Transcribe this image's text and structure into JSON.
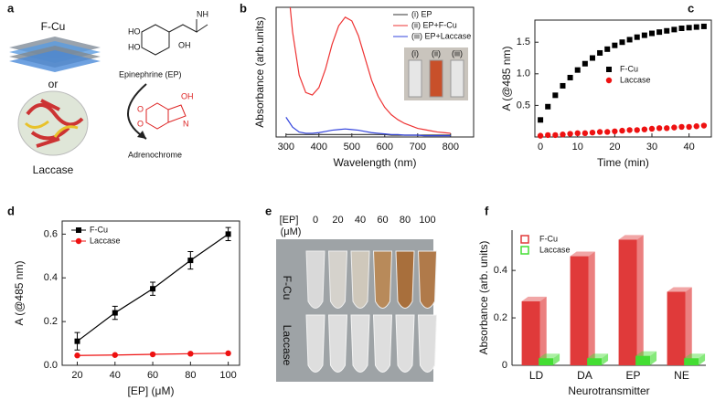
{
  "chart_data": [
    {
      "panel": "b",
      "type": "line",
      "xlabel": "Wavelength (nm)",
      "ylabel": "Absorbance (arb.units)",
      "x": [
        300,
        320,
        340,
        360,
        380,
        400,
        420,
        440,
        460,
        480,
        500,
        520,
        540,
        560,
        580,
        600,
        620,
        640,
        660,
        680,
        700,
        720,
        740,
        760,
        780,
        800
      ],
      "xlim": [
        270,
        870
      ],
      "xticks": [
        300,
        400,
        500,
        600,
        700,
        800
      ],
      "ylim": [
        0,
        1.05
      ],
      "legend": "upper right",
      "inset_labels": [
        "(i)",
        "(ii)",
        "(iii)"
      ],
      "series": [
        {
          "name": "(i) EP",
          "color": "#333333",
          "values": [
            0.02,
            0.02,
            0.02,
            0.02,
            0.02,
            0.02,
            0.02,
            0.02,
            0.02,
            0.02,
            0.02,
            0.02,
            0.02,
            0.02,
            0.02,
            0.02,
            0.015,
            0.015,
            0.015,
            0.015,
            0.015,
            0.015,
            0.015,
            0.015,
            0.015,
            0.015
          ]
        },
        {
          "name": "(ii) EP+F-Cu",
          "color": "#ee3333",
          "values": [
            1.4,
            0.85,
            0.5,
            0.36,
            0.34,
            0.4,
            0.55,
            0.75,
            0.9,
            0.97,
            0.94,
            0.82,
            0.64,
            0.46,
            0.33,
            0.24,
            0.18,
            0.14,
            0.11,
            0.09,
            0.07,
            0.06,
            0.05,
            0.04,
            0.035,
            0.03
          ]
        },
        {
          "name": "(iii) EP+Laccase",
          "color": "#3344dd",
          "values": [
            0.16,
            0.08,
            0.04,
            0.03,
            0.03,
            0.035,
            0.045,
            0.055,
            0.06,
            0.065,
            0.06,
            0.055,
            0.045,
            0.035,
            0.03,
            0.025,
            0.02,
            0.02,
            0.015,
            0.015,
            0.015,
            0.01,
            0.01,
            0.01,
            0.01,
            0.01
          ]
        }
      ]
    },
    {
      "panel": "c",
      "type": "scatter",
      "xlabel": "Time (min)",
      "ylabel": "A (@485 nm)",
      "x": [
        0,
        2,
        4,
        6,
        8,
        10,
        12,
        14,
        16,
        18,
        20,
        22,
        24,
        26,
        28,
        30,
        32,
        34,
        36,
        38,
        40,
        42,
        44
      ],
      "xlim": [
        -1.5,
        46
      ],
      "xticks": [
        0,
        10,
        20,
        30,
        40
      ],
      "ylim": [
        0,
        1.85
      ],
      "yticks": [
        0.5,
        {
          "value": 1,
          "label": "1.0"
        },
        1.5
      ],
      "legend": "center right",
      "series": [
        {
          "name": "F-Cu",
          "color": "#000000",
          "marker": "square",
          "values": [
            0.27,
            0.48,
            0.66,
            0.81,
            0.94,
            1.06,
            1.16,
            1.25,
            1.33,
            1.39,
            1.45,
            1.5,
            1.54,
            1.58,
            1.61,
            1.64,
            1.66,
            1.68,
            1.7,
            1.72,
            1.73,
            1.74,
            1.75
          ]
        },
        {
          "name": "Laccase",
          "color": "#ee1111",
          "marker": "circle",
          "values": [
            0.02,
            0.03,
            0.03,
            0.04,
            0.05,
            0.06,
            0.06,
            0.07,
            0.08,
            0.08,
            0.09,
            0.1,
            0.11,
            0.11,
            0.12,
            0.13,
            0.14,
            0.14,
            0.15,
            0.16,
            0.16,
            0.17,
            0.18
          ]
        }
      ]
    },
    {
      "panel": "d",
      "type": "line",
      "xlabel": "[EP] (μM)",
      "ylabel": "A (@485 nm)",
      "x": [
        20,
        40,
        60,
        80,
        100
      ],
      "xlim": [
        12,
        106
      ],
      "xticks": [
        20,
        40,
        60,
        80,
        100
      ],
      "ylim": [
        0,
        0.66
      ],
      "yticks": [
        {
          "value": 0,
          "label": "0.0"
        },
        0.2,
        0.4,
        0.6
      ],
      "legend": "upper left",
      "series": [
        {
          "name": "F-Cu",
          "color": "#000000",
          "marker": "square",
          "values": [
            0.11,
            0.24,
            0.35,
            0.48,
            0.6
          ],
          "errors": [
            0.04,
            0.03,
            0.03,
            0.04,
            0.03
          ]
        },
        {
          "name": "Laccase",
          "color": "#ee1111",
          "marker": "circle",
          "values": [
            0.045,
            0.047,
            0.05,
            0.053,
            0.055
          ]
        }
      ]
    },
    {
      "panel": "f",
      "type": "bar",
      "xlabel": "Neurotransmitter",
      "ylabel": "Absorbance (arb. units)",
      "categories": [
        "LD",
        "DA",
        "EP",
        "NE"
      ],
      "ylim": [
        0,
        0.57
      ],
      "yticks": [
        0,
        0.2,
        0.4
      ],
      "legend": "upper left",
      "series": [
        {
          "name": "F-Cu",
          "color": "#e03a3a",
          "values": [
            0.27,
            0.46,
            0.53,
            0.31
          ]
        },
        {
          "name": "Laccase",
          "color": "#44dd33",
          "values": [
            0.03,
            0.03,
            0.04,
            0.03
          ]
        }
      ]
    }
  ],
  "panel_a": {
    "label": "a",
    "material": "F-Cu",
    "or": "or",
    "enzyme": "Laccase",
    "substrate": "Epinephrine (EP)",
    "product": "Adrenochrome",
    "substrate_atoms": [
      "HO",
      "HO",
      "OH",
      "NH"
    ],
    "product_atoms": [
      "O",
      "O",
      "OH",
      "N"
    ]
  },
  "panel_e": {
    "label": "e",
    "concentration_label": "[EP]",
    "unit": "(μM)",
    "concentrations": [
      0,
      20,
      40,
      60,
      80,
      100
    ],
    "rows": [
      "F-Cu",
      "Laccase"
    ]
  }
}
